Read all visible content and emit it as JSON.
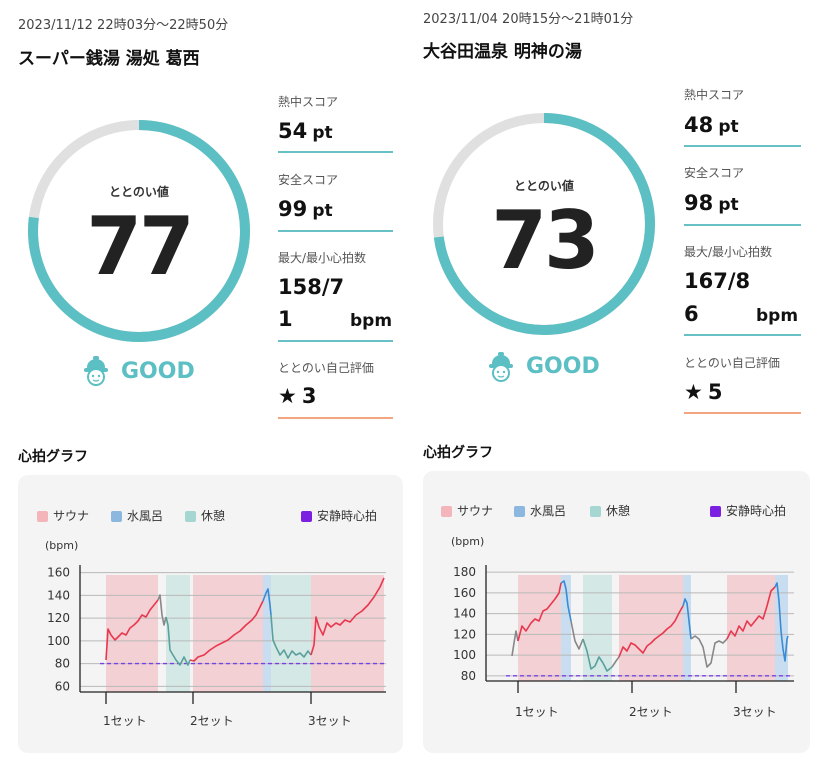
{
  "sessions": [
    {
      "datetime": "2023/11/12 22時03分〜22時50分",
      "facility": "スーパー銭湯 湯処 葛西",
      "totonoi_label": "ととのい値",
      "totonoi_value": "77",
      "totonoi_fraction": 0.77,
      "rating": "GOOD",
      "heat_label": "熱中スコア",
      "heat_value": "54",
      "heat_unit": "pt",
      "safety_label": "安全スコア",
      "safety_value": "99",
      "safety_unit": "pt",
      "hr_label": "最大/最小心拍数",
      "hr_value_line1": "158/7",
      "hr_value_line2": "1",
      "hr_unit": "bpm",
      "self_label": "ととのい自己評価",
      "self_star": "★",
      "self_value": "3"
    },
    {
      "datetime": "2023/11/04 20時15分〜21時01分",
      "facility": "大谷田温泉 明神の湯",
      "totonoi_label": "ととのい値",
      "totonoi_value": "73",
      "totonoi_fraction": 0.73,
      "rating": "GOOD",
      "heat_label": "熱中スコア",
      "heat_value": "48",
      "heat_unit": "pt",
      "safety_label": "安全スコア",
      "safety_value": "98",
      "safety_unit": "pt",
      "hr_label": "最大/最小心拍数",
      "hr_value_line1": "167/8",
      "hr_value_line2": "6",
      "hr_unit": "bpm",
      "self_label": "ととのい自己評価",
      "self_star": "★",
      "self_value": "5"
    }
  ],
  "graph_title": "心拍グラフ",
  "legend": {
    "sauna": "サウナ",
    "water": "水風呂",
    "rest": "休憩",
    "resting": "安静時心拍"
  },
  "colors": {
    "gauge": "#5bbfc3",
    "gauge_track": "#e0e0e0",
    "sauna": "#e8384f",
    "sauna_fill": "#f3c4c8",
    "water": "#3a8bd6",
    "water_fill": "#b9d6ee",
    "rest": "#5aa09c",
    "rest_fill": "#c9e5e2",
    "transition": "#888888",
    "resting": "#7b3fe4",
    "divider_teal": "#66c0c6",
    "divider_orange": "#f2a57e"
  },
  "charts": [
    {
      "y_unit": "(bpm)",
      "y_ticks": [
        "160",
        "140",
        "120",
        "100",
        "80",
        "60"
      ],
      "ylim": [
        55,
        165
      ],
      "resting_hr": 80,
      "x_labels": [
        "1セット",
        "2セット",
        "3セット"
      ]
    },
    {
      "y_unit": "(bpm)",
      "y_ticks": [
        "180",
        "160",
        "140",
        "120",
        "100",
        "80"
      ],
      "ylim": [
        75,
        185
      ],
      "resting_hr": 80,
      "x_labels": [
        "1セット",
        "2セット",
        "3セット"
      ]
    }
  ]
}
